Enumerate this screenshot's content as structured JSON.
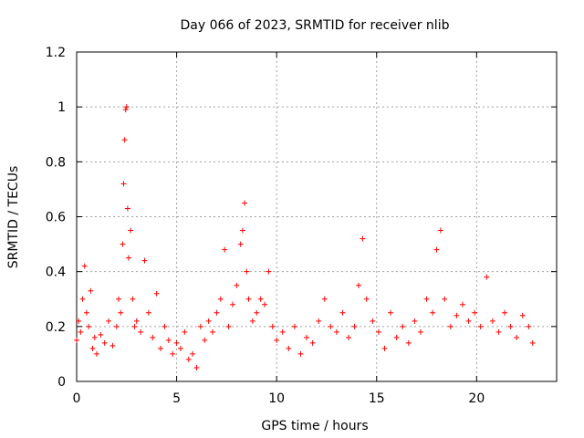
{
  "chart_data": {
    "type": "scatter",
    "title": "Day 066 of 2023, SRMTID for receiver nlib",
    "xlabel": "GPS time / hours",
    "ylabel": "SRMTID / TECUs",
    "xlim": [
      0,
      24
    ],
    "ylim": [
      0,
      1.2
    ],
    "x_ticks": [
      0,
      5,
      10,
      15,
      20
    ],
    "x_tick_labels": [
      "0",
      "5",
      "10",
      "15",
      "20"
    ],
    "y_ticks": [
      0,
      0.2,
      0.4,
      0.6,
      0.8,
      1.0,
      1.2
    ],
    "y_tick_labels": [
      "0",
      "0.2",
      "0.4",
      "0.6",
      "0.8",
      "1",
      "1.2"
    ],
    "grid": true,
    "marker": "+",
    "series": [
      {
        "name": "SRMTID",
        "color": "#ff0000",
        "x": [
          0.0,
          0.1,
          0.2,
          0.3,
          0.4,
          0.5,
          0.6,
          0.7,
          0.8,
          0.9,
          1.0,
          1.2,
          1.4,
          1.6,
          1.8,
          2.0,
          2.1,
          2.2,
          2.3,
          2.35,
          2.4,
          2.45,
          2.5,
          2.55,
          2.6,
          2.7,
          2.8,
          2.9,
          3.0,
          3.2,
          3.4,
          3.6,
          3.8,
          4.0,
          4.2,
          4.4,
          4.6,
          4.8,
          5.0,
          5.2,
          5.4,
          5.6,
          5.8,
          6.0,
          6.2,
          6.4,
          6.6,
          6.8,
          7.0,
          7.2,
          7.4,
          7.6,
          7.8,
          8.0,
          8.2,
          8.3,
          8.4,
          8.5,
          8.6,
          8.8,
          9.0,
          9.2,
          9.4,
          9.6,
          9.8,
          10.0,
          10.3,
          10.6,
          10.9,
          11.2,
          11.5,
          11.8,
          12.1,
          12.4,
          12.7,
          13.0,
          13.3,
          13.6,
          13.9,
          14.1,
          14.3,
          14.5,
          14.8,
          15.1,
          15.4,
          15.7,
          16.0,
          16.3,
          16.6,
          16.9,
          17.2,
          17.5,
          17.8,
          18.0,
          18.2,
          18.4,
          18.7,
          19.0,
          19.3,
          19.6,
          19.9,
          20.2,
          20.5,
          20.8,
          21.1,
          21.4,
          21.7,
          22.0,
          22.3,
          22.6,
          22.8
        ],
        "y": [
          0.15,
          0.22,
          0.18,
          0.3,
          0.42,
          0.25,
          0.2,
          0.33,
          0.12,
          0.16,
          0.1,
          0.17,
          0.14,
          0.22,
          0.13,
          0.2,
          0.3,
          0.25,
          0.5,
          0.72,
          0.88,
          0.99,
          1.0,
          0.63,
          0.45,
          0.55,
          0.3,
          0.2,
          0.22,
          0.18,
          0.44,
          0.25,
          0.16,
          0.32,
          0.12,
          0.2,
          0.15,
          0.1,
          0.14,
          0.12,
          0.18,
          0.08,
          0.1,
          0.05,
          0.2,
          0.15,
          0.22,
          0.18,
          0.25,
          0.3,
          0.48,
          0.2,
          0.28,
          0.35,
          0.5,
          0.55,
          0.65,
          0.4,
          0.3,
          0.22,
          0.25,
          0.3,
          0.28,
          0.4,
          0.2,
          0.15,
          0.18,
          0.12,
          0.2,
          0.1,
          0.16,
          0.14,
          0.22,
          0.3,
          0.2,
          0.18,
          0.25,
          0.16,
          0.2,
          0.35,
          0.52,
          0.3,
          0.22,
          0.18,
          0.12,
          0.25,
          0.16,
          0.2,
          0.14,
          0.22,
          0.18,
          0.3,
          0.25,
          0.48,
          0.55,
          0.3,
          0.2,
          0.24,
          0.28,
          0.22,
          0.25,
          0.2,
          0.38,
          0.22,
          0.18,
          0.25,
          0.2,
          0.16,
          0.24,
          0.2,
          0.14
        ]
      }
    ]
  }
}
